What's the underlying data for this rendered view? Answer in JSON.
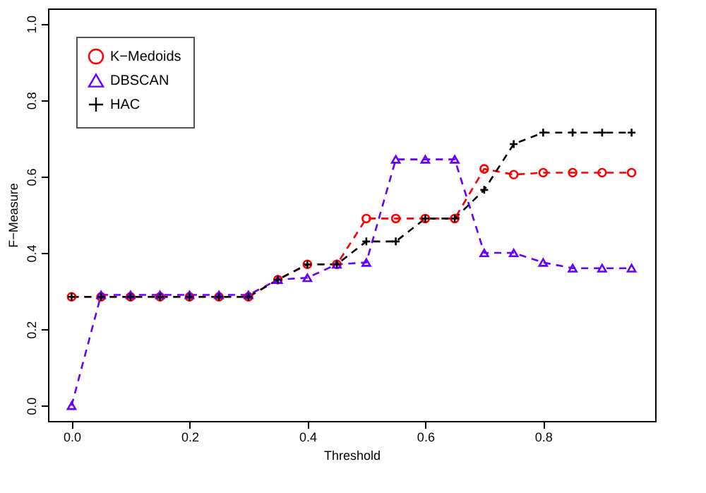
{
  "chart_data": {
    "type": "line",
    "xlabel": "Threshold",
    "ylabel": "F−Measure",
    "x": [
      0,
      0.05,
      0.1,
      0.15,
      0.2,
      0.25,
      0.3,
      0.35,
      0.4,
      0.45,
      0.5,
      0.55,
      0.6,
      0.65,
      0.7,
      0.75,
      0.8,
      0.85,
      0.9,
      0.95
    ],
    "series": [
      {
        "name": "K−Medoids",
        "color": "#ff0000",
        "marker": "circle",
        "values": [
          0.285,
          0.285,
          0.285,
          0.285,
          0.285,
          0.285,
          0.285,
          0.33,
          0.37,
          0.37,
          0.49,
          0.49,
          0.49,
          0.49,
          0.62,
          0.605,
          0.61,
          0.61,
          0.61,
          0.61
        ]
      },
      {
        "name": "DBSCAN",
        "color": "#6600ff",
        "marker": "triangle",
        "values": [
          0,
          0.29,
          0.29,
          0.29,
          0.29,
          0.29,
          0.29,
          0.33,
          0.335,
          0.37,
          0.375,
          0.645,
          0.645,
          0.645,
          0.4,
          0.4,
          0.375,
          0.36,
          0.36,
          0.36
        ]
      },
      {
        "name": "HAC",
        "color": "#000000",
        "marker": "cross",
        "values": [
          0.285,
          0.285,
          0.285,
          0.285,
          0.285,
          0.285,
          0.285,
          0.33,
          0.37,
          0.37,
          0.43,
          0.43,
          0.49,
          0.49,
          0.565,
          0.685,
          0.715,
          0.715,
          0.715,
          0.715
        ]
      }
    ],
    "xlim": [
      -0.04,
      0.99
    ],
    "ylim": [
      -0.04,
      1.04
    ],
    "xticks": [
      {
        "value": 0,
        "label": "0.0"
      },
      0.2,
      0.4,
      0.6,
      0.8
    ],
    "yticks": [
      {
        "value": 0,
        "label": "0.0"
      },
      0.2,
      0.4,
      0.6,
      0.8,
      {
        "value": 1,
        "label": "1.0"
      }
    ],
    "line_style": "dashed",
    "legend": "top left",
    "grid": false
  }
}
